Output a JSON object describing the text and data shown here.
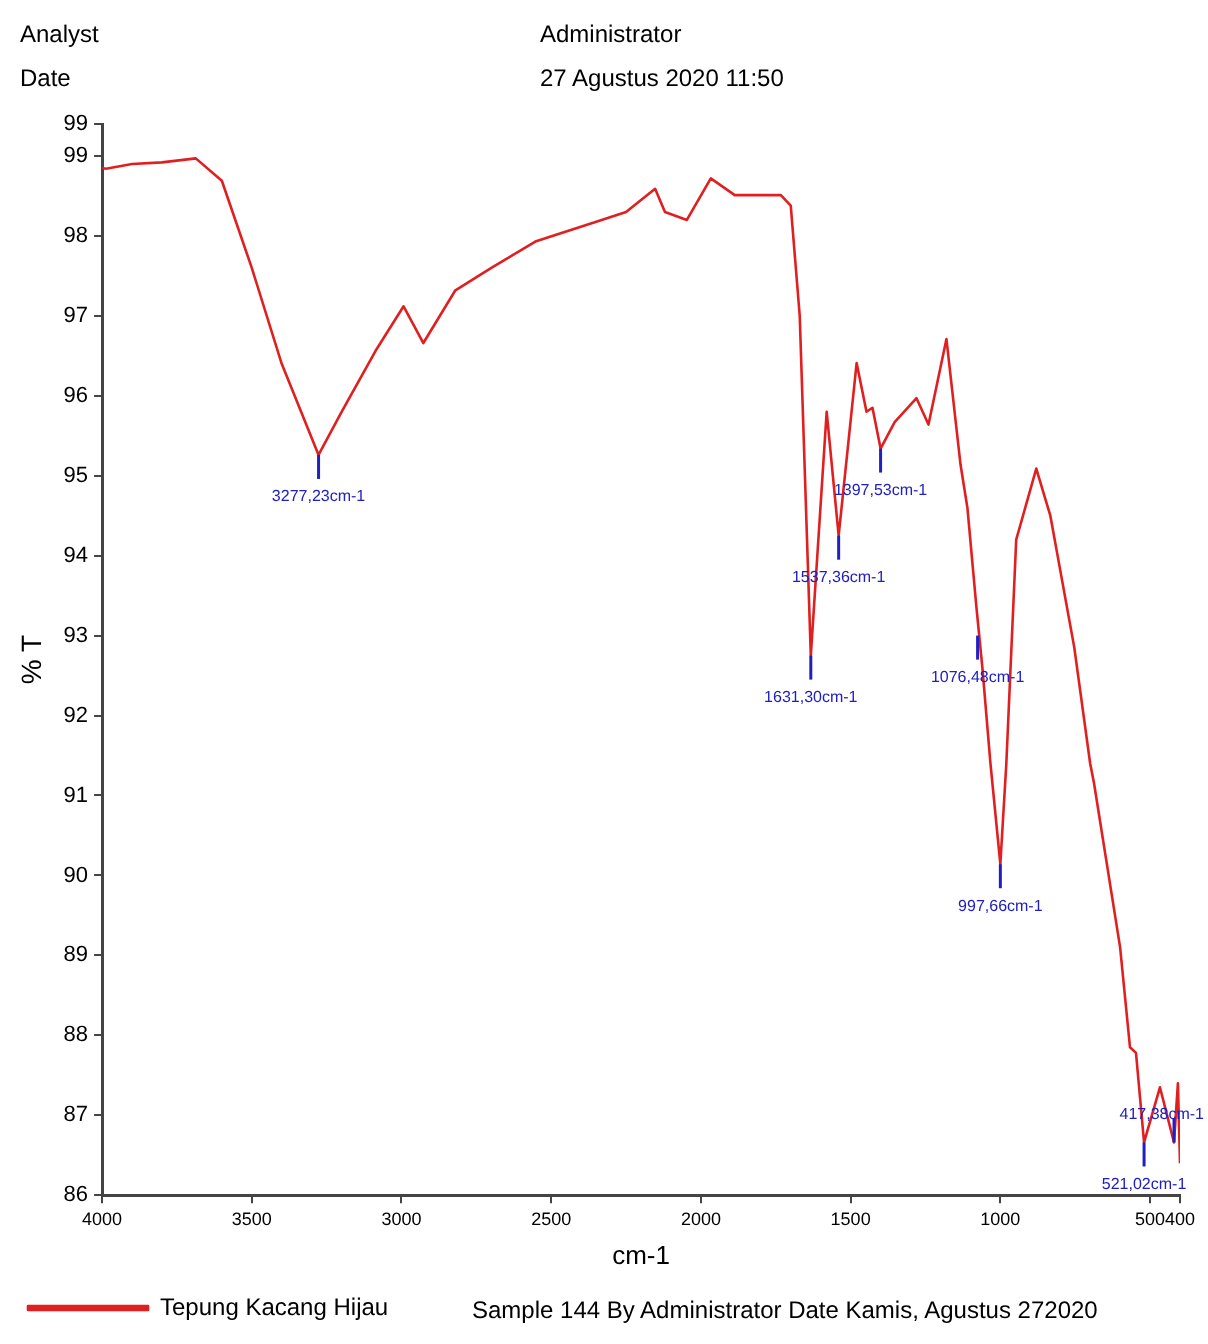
{
  "chart_data": {
    "type": "line",
    "xlabel": "cm-1",
    "ylabel": "% T",
    "legend": "bottom",
    "grid": false,
    "marker": "none",
    "line_style": "solid",
    "xlim": [
      4000,
      400
    ],
    "xticks": [
      4000,
      3500,
      3000,
      2500,
      2000,
      1500,
      1000,
      500,
      400
    ],
    "ylim": [
      86,
      99.4
    ],
    "yticks": [
      86,
      87,
      88,
      89,
      90,
      91,
      92,
      93,
      94,
      95,
      96,
      97,
      98,
      99,
      {
        "value": 99.4,
        "label": "99"
      }
    ],
    "series": [
      {
        "name": "Tepung Kacang Hijau",
        "color": "#e02020",
        "x": [
          4000,
          3987,
          3900,
          3800,
          3687,
          3600,
          3500,
          3400,
          3277,
          3200,
          3087,
          2993,
          2927,
          2820,
          2700,
          2553,
          2347,
          2250,
          2153,
          2120,
          2047,
          1967,
          1887,
          1733,
          1700,
          1670,
          1633,
          1580,
          1540,
          1480,
          1447,
          1427,
          1400,
          1353,
          1280,
          1240,
          1180,
          1133,
          1110,
          1080,
          1060,
          1033,
          1000,
          980,
          947,
          880,
          833,
          753,
          700,
          687,
          600,
          567,
          547,
          520,
          467,
          420,
          407,
          400
        ],
        "values": [
          98.85,
          98.84,
          98.9,
          98.92,
          98.97,
          98.69,
          97.6,
          96.4,
          95.26,
          95.8,
          96.56,
          97.12,
          96.66,
          97.32,
          97.6,
          97.93,
          98.18,
          98.3,
          98.59,
          98.3,
          98.2,
          98.72,
          98.51,
          98.51,
          98.38,
          97.0,
          92.75,
          95.8,
          94.25,
          96.41,
          95.8,
          95.85,
          95.34,
          95.67,
          95.97,
          95.64,
          96.71,
          95.14,
          94.6,
          93.36,
          92.6,
          91.4,
          90.14,
          91.4,
          94.2,
          95.09,
          94.5,
          92.85,
          91.4,
          91.15,
          89.1,
          87.85,
          87.78,
          86.66,
          87.35,
          86.66,
          87.4,
          86.4
        ]
      }
    ],
    "annotations": [
      {
        "text": "3277,23cm-1",
        "x": 3277,
        "y": 95.26
      },
      {
        "text": "1631,30cm-1",
        "x": 1633,
        "y": 92.75
      },
      {
        "text": "1537,36cm-1",
        "x": 1540,
        "y": 94.25
      },
      {
        "text": "1397,53cm-1",
        "x": 1400,
        "y": 95.34
      },
      {
        "text": "1076,48cm-1",
        "x": 1076,
        "y": 93.0
      },
      {
        "text": "997,66cm-1",
        "x": 1000,
        "y": 90.14
      },
      {
        "text": "521,02cm-1",
        "x": 520,
        "y": 86.66
      },
      {
        "text": "417,38cm-1",
        "x": 420,
        "y": 86.66
      },
      "Analyst",
      "Administrator",
      "Date",
      "27 Agustus 2020 11:50",
      "Sample 144 By Administrator Date Kamis, Agustus 272020"
    ]
  }
}
